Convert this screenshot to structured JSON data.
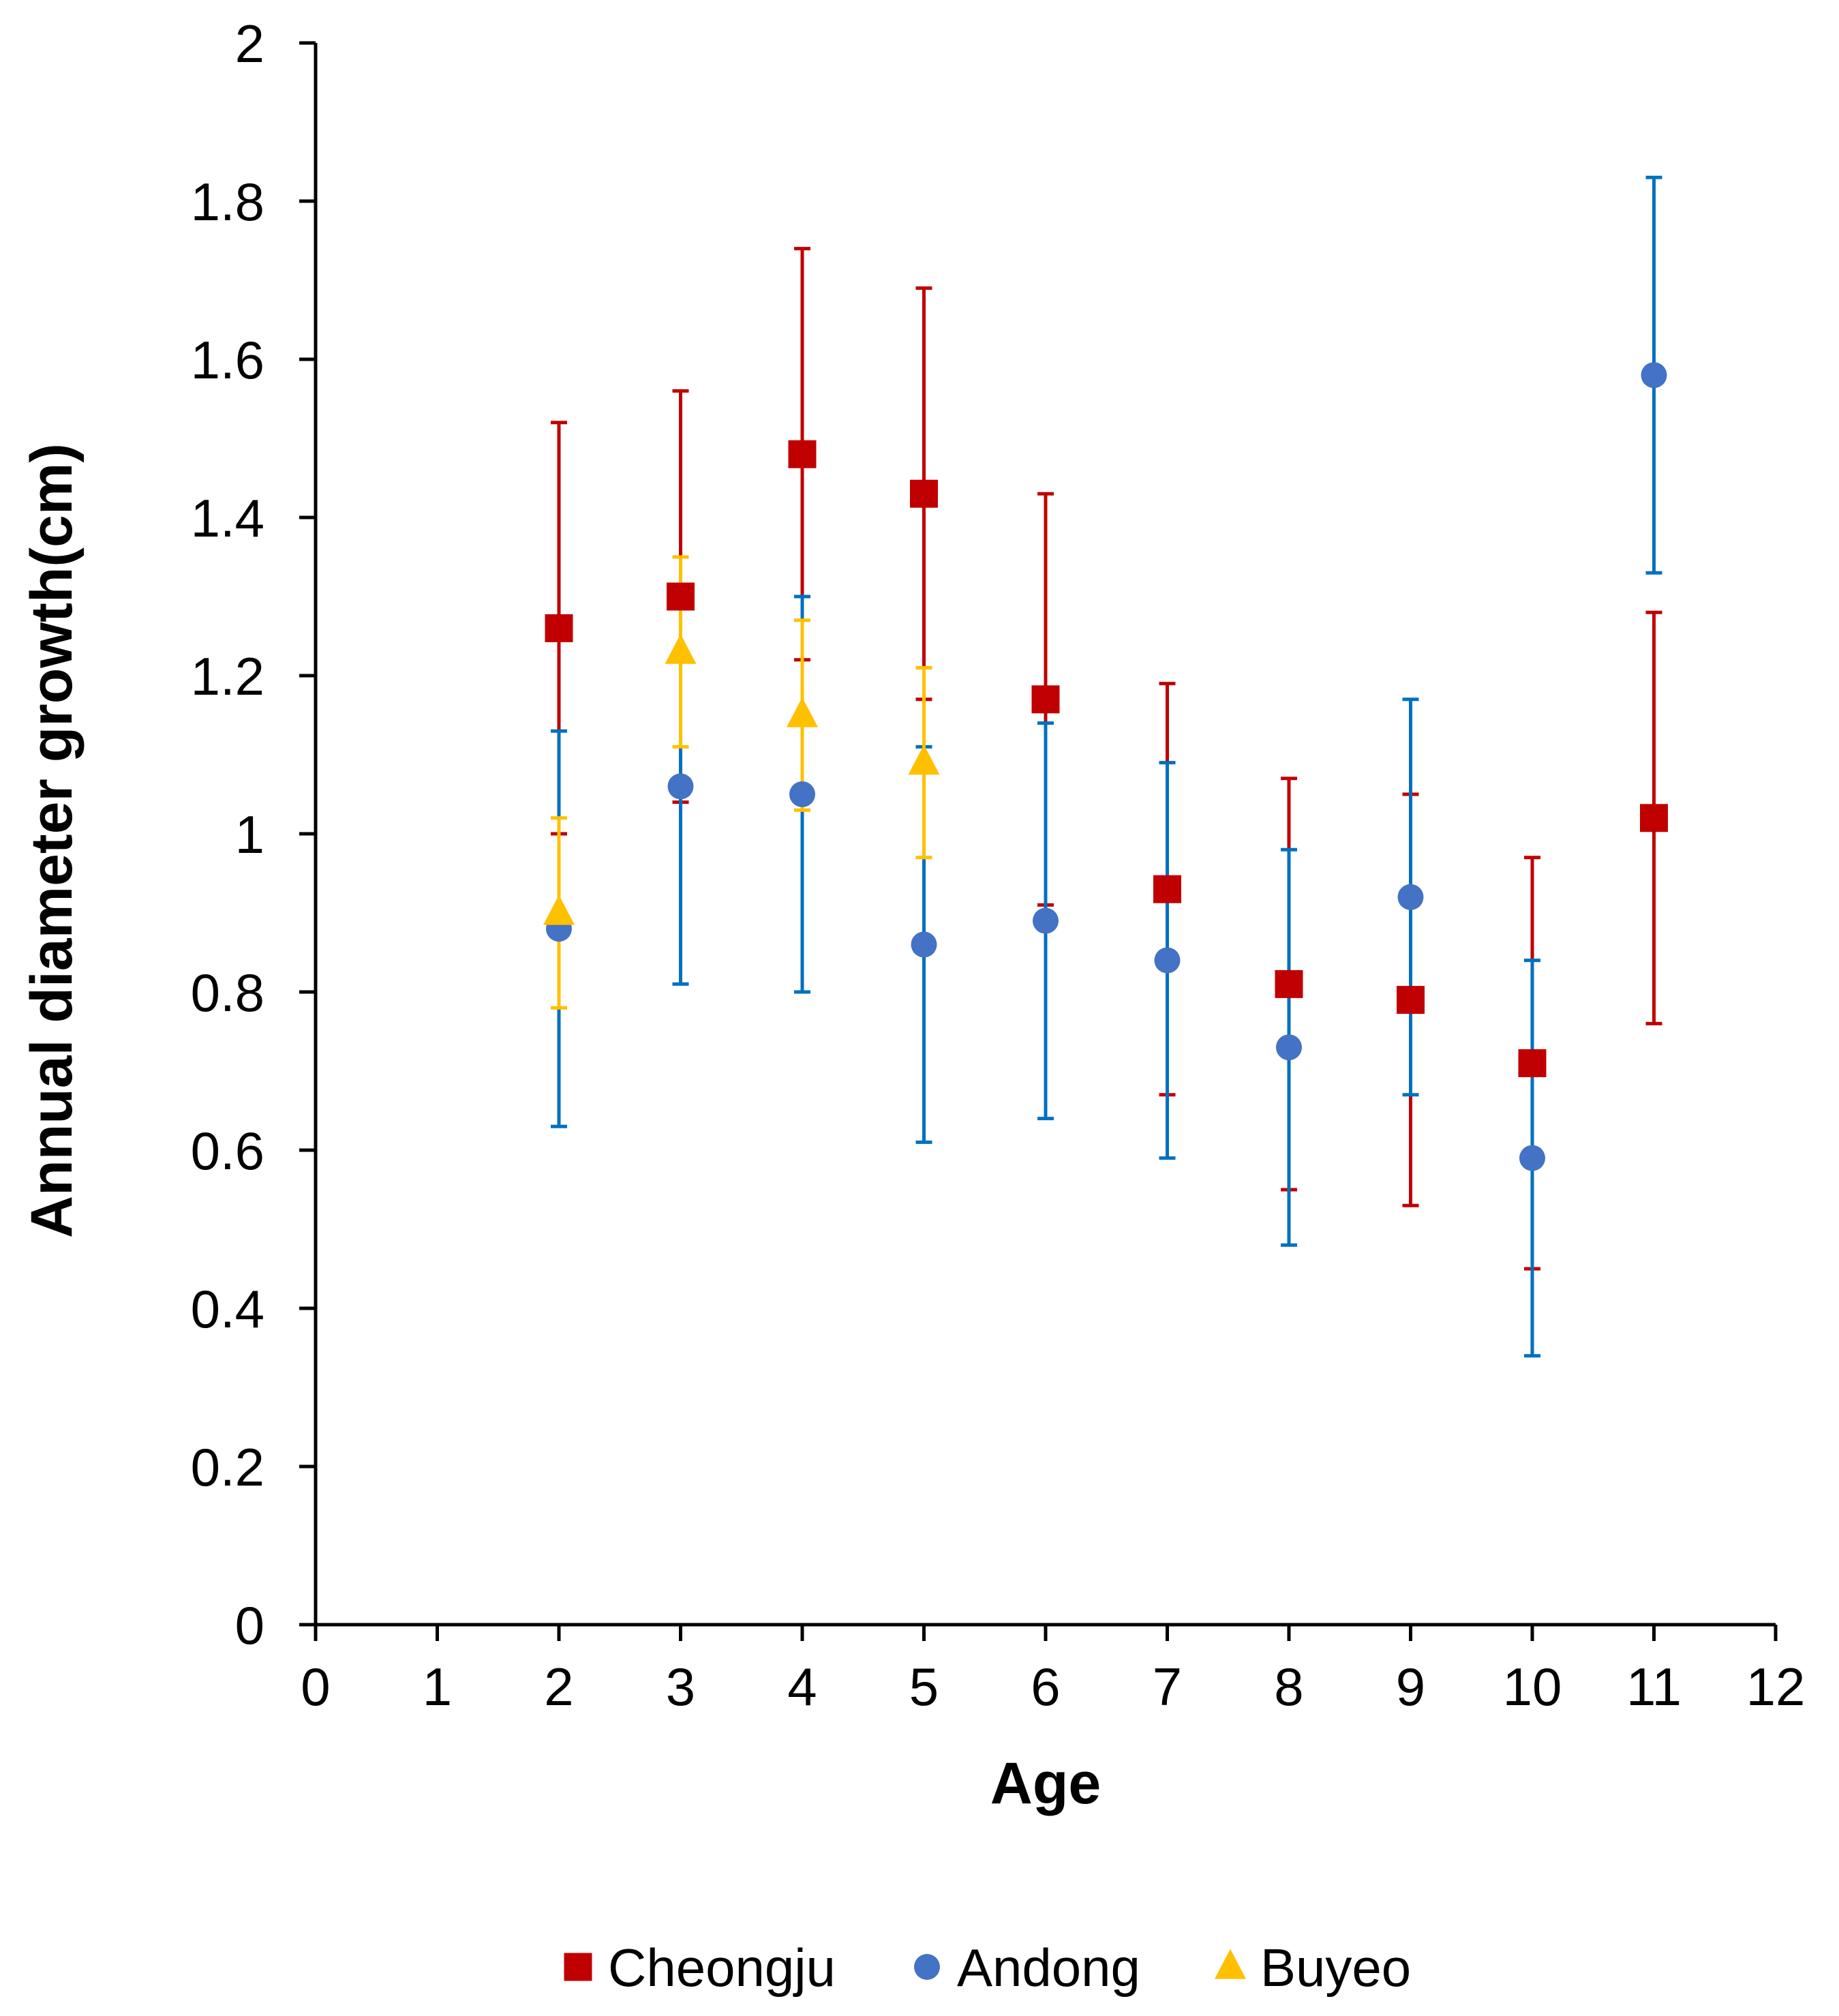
{
  "chart_data": {
    "type": "scatter",
    "title": "",
    "xlabel": "Age",
    "ylabel": "Annual diameter growth(cm)",
    "xlim": [
      0,
      12
    ],
    "ylim": [
      0,
      2
    ],
    "x_ticks": [
      "0",
      "1",
      "2",
      "3",
      "4",
      "5",
      "6",
      "7",
      "8",
      "9",
      "10",
      "11",
      "12"
    ],
    "y_ticks": [
      "0",
      "0.2",
      "0.4",
      "0.6",
      "0.8",
      "1",
      "1.2",
      "1.4",
      "1.6",
      "1.8",
      "2"
    ],
    "grid": false,
    "legend_position": "bottom",
    "series": [
      {
        "name": "Cheongju",
        "marker": "square",
        "color": "#C00000",
        "error_color": "#C00000",
        "x": [
          2,
          3,
          4,
          5,
          6,
          7,
          8,
          9,
          10,
          11
        ],
        "y": [
          1.26,
          1.3,
          1.48,
          1.43,
          1.17,
          0.93,
          0.81,
          0.79,
          0.71,
          1.02
        ],
        "error": [
          0.26,
          0.26,
          0.26,
          0.26,
          0.26,
          0.26,
          0.26,
          0.26,
          0.26,
          0.26
        ]
      },
      {
        "name": "Andong",
        "marker": "circle",
        "color": "#4472C4",
        "error_color": "#0070C0",
        "x": [
          2,
          3,
          4,
          5,
          6,
          7,
          8,
          9,
          10,
          11
        ],
        "y": [
          0.88,
          1.06,
          1.05,
          0.86,
          0.89,
          0.84,
          0.73,
          0.92,
          0.59,
          1.58
        ],
        "error": [
          0.25,
          0.25,
          0.25,
          0.25,
          0.25,
          0.25,
          0.25,
          0.25,
          0.25,
          0.25
        ]
      },
      {
        "name": "Buyeo",
        "marker": "triangle",
        "color": "#FFC000",
        "error_color": "#FFC000",
        "x": [
          2,
          3,
          4,
          5
        ],
        "y": [
          0.9,
          1.23,
          1.15,
          1.09
        ],
        "error": [
          0.12,
          0.12,
          0.12,
          0.12
        ]
      }
    ]
  }
}
